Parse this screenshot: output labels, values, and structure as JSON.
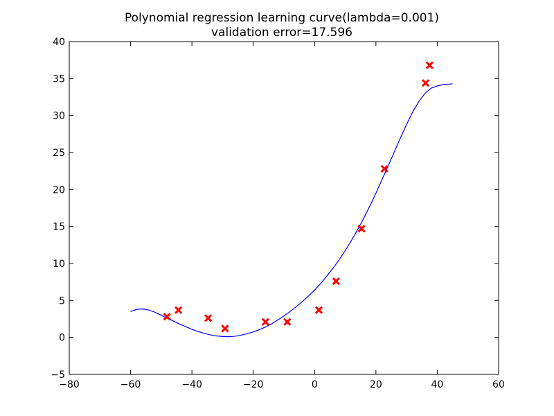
{
  "chart_data": {
    "type": "scatter",
    "title": [
      "Polynomial regression learning curve(lambda=0.001)",
      "validation error=17.596"
    ],
    "xlabel": "",
    "ylabel": "",
    "xlim": [
      -80,
      60
    ],
    "ylim": [
      -5,
      40
    ],
    "xticks": [
      -80,
      -60,
      -40,
      -20,
      0,
      20,
      40,
      60
    ],
    "yticks": [
      -5,
      0,
      5,
      10,
      15,
      20,
      25,
      30,
      35,
      40
    ],
    "grid": false,
    "legend": "none",
    "series": [
      {
        "kind": "points",
        "marker": "x",
        "color": "#ff0000",
        "x": [
          -48.1,
          -44.4,
          -34.7,
          -29.2,
          -16.0,
          -8.9,
          1.4,
          7.0,
          15.3,
          22.8,
          36.2,
          37.5
        ],
        "y": [
          2.8,
          3.7,
          2.6,
          1.2,
          2.1,
          2.1,
          3.7,
          7.6,
          14.7,
          22.8,
          34.4,
          36.8
        ]
      },
      {
        "kind": "line",
        "color": "#0000ff",
        "x": [
          -60,
          -58,
          -56,
          -54,
          -52,
          -50,
          -48,
          -46,
          -44,
          -42,
          -40,
          -38,
          -36,
          -34,
          -32,
          -30,
          -28,
          -26,
          -24,
          -22,
          -20,
          -18,
          -16,
          -14,
          -12,
          -10,
          -8,
          -6,
          -4,
          -2,
          0,
          2,
          4,
          6,
          8,
          10,
          12,
          14,
          16,
          18,
          20,
          22,
          24,
          26,
          28,
          30,
          32,
          34,
          36,
          38,
          40,
          42,
          44,
          45
        ],
        "y": [
          3.5,
          3.8,
          3.85,
          3.7,
          3.4,
          3.0,
          2.6,
          2.2,
          1.8,
          1.45,
          1.1,
          0.8,
          0.55,
          0.35,
          0.2,
          0.12,
          0.1,
          0.15,
          0.3,
          0.5,
          0.75,
          1.05,
          1.4,
          1.85,
          2.35,
          2.9,
          3.5,
          4.15,
          4.85,
          5.6,
          6.4,
          7.3,
          8.3,
          9.35,
          10.5,
          11.75,
          13.1,
          14.55,
          16.1,
          17.75,
          19.5,
          21.35,
          23.2,
          25.1,
          27.0,
          28.8,
          30.5,
          31.9,
          33.0,
          33.7,
          34.0,
          34.2,
          34.25,
          34.3
        ]
      }
    ]
  }
}
